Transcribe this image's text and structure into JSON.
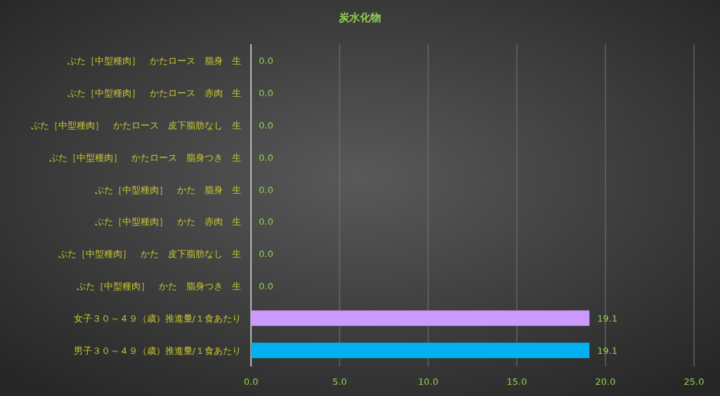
{
  "chart_data": {
    "type": "bar",
    "orientation": "horizontal",
    "title": "炭水化物",
    "categories": [
      "ぶた［中型種肉］　かたロース　脂身　生",
      "ぶた［中型種肉］　かたロース　赤肉　生",
      "ぶた［中型種肉］　かたロース　皮下脂肪なし　生",
      "ぶた［中型種肉］　かたロース　脂身つき　生",
      "ぶた［中型種肉］　かた　脂身　生",
      "ぶた［中型種肉］　かた　赤肉　生",
      "ぶた［中型種肉］　かた　皮下脂肪なし　生",
      "ぶた［中型種肉］　かた　脂身つき　生",
      "女子３０～４９（歳）推進量/１食あたり",
      "男子３０～４９（歳）推進量/１食あたり"
    ],
    "values": [
      0.0,
      0.0,
      0.0,
      0.0,
      0.0,
      0.0,
      0.0,
      0.0,
      19.1,
      19.1
    ],
    "colors": [
      "#00b0f0",
      "#00b0f0",
      "#00b0f0",
      "#00b0f0",
      "#00b0f0",
      "#00b0f0",
      "#00b0f0",
      "#00b0f0",
      "#cc99ff",
      "#00b0f0"
    ],
    "value_labels": [
      "0.0",
      "0.0",
      "0.0",
      "0.0",
      "0.0",
      "0.0",
      "0.0",
      "0.0",
      "19.1",
      "19.1"
    ],
    "xlim": [
      0,
      25
    ],
    "xticks": [
      {
        "value": 0,
        "label": "0.0"
      },
      {
        "value": 5,
        "label": "5.0"
      },
      {
        "value": 10,
        "label": "10.0"
      },
      {
        "value": 15,
        "label": "15.0"
      },
      {
        "value": 20,
        "label": "20.0"
      },
      {
        "value": 25,
        "label": "25.0"
      }
    ],
    "grid": "x"
  }
}
